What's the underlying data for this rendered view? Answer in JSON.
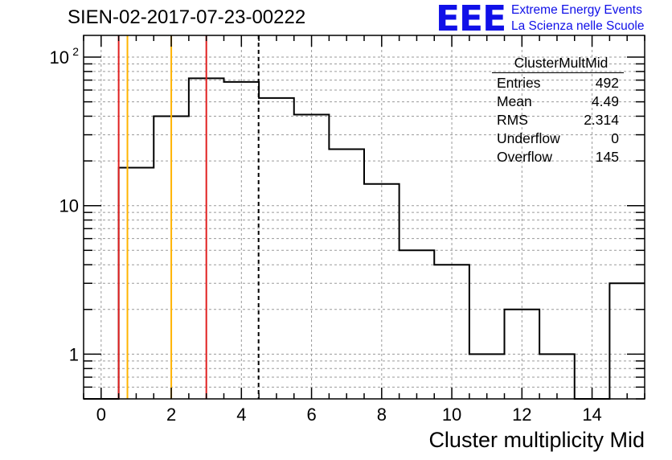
{
  "title": "SIEN-02-2017-07-23-00222",
  "logo": {
    "text": "EEE",
    "line1": "Extreme Energy Events",
    "line2": "La Scienza nelle Scuole",
    "color": "#1010e8"
  },
  "stats": {
    "name": "ClusterMultMid",
    "rows": [
      {
        "label": "Entries",
        "value": "492"
      },
      {
        "label": "Mean",
        "value": "4.49"
      },
      {
        "label": "RMS",
        "value": "2.314"
      },
      {
        "label": "Underflow",
        "value": "0"
      },
      {
        "label": "Overflow",
        "value": "145"
      }
    ]
  },
  "chart_data": {
    "type": "histogram",
    "xlabel": "Cluster multiplicity Mid",
    "ylabel": "",
    "xlim": [
      -0.5,
      15.5
    ],
    "ylim": [
      0.5,
      140
    ],
    "yscale": "log",
    "grid": true,
    "x_ticks": [
      0,
      2,
      4,
      6,
      8,
      10,
      12,
      14
    ],
    "y_ticks": [
      {
        "value": 1,
        "label": "1"
      },
      {
        "value": 10,
        "label": "10"
      },
      {
        "value": 100,
        "label": "10",
        "exp": "2"
      }
    ],
    "bin_width": 1,
    "bins": [
      {
        "x": 0,
        "count": 0
      },
      {
        "x": 1,
        "count": 18
      },
      {
        "x": 2,
        "count": 40
      },
      {
        "x": 3,
        "count": 72
      },
      {
        "x": 4,
        "count": 68
      },
      {
        "x": 5,
        "count": 53
      },
      {
        "x": 6,
        "count": 41
      },
      {
        "x": 7,
        "count": 24
      },
      {
        "x": 8,
        "count": 14
      },
      {
        "x": 9,
        "count": 5
      },
      {
        "x": 10,
        "count": 4
      },
      {
        "x": 11,
        "count": 1
      },
      {
        "x": 12,
        "count": 2
      },
      {
        "x": 13,
        "count": 1
      },
      {
        "x": 14,
        "count": 0
      },
      {
        "x": 15,
        "count": 3
      }
    ],
    "vertical_lines": [
      {
        "x": 0.5,
        "color": "#e02020",
        "style": "solid"
      },
      {
        "x": 0.75,
        "color": "#ffb400",
        "style": "solid"
      },
      {
        "x": 2.0,
        "color": "#ffb400",
        "style": "solid"
      },
      {
        "x": 3.0,
        "color": "#e02020",
        "style": "solid"
      },
      {
        "x": 4.49,
        "color": "#000000",
        "style": "dashed"
      }
    ]
  }
}
